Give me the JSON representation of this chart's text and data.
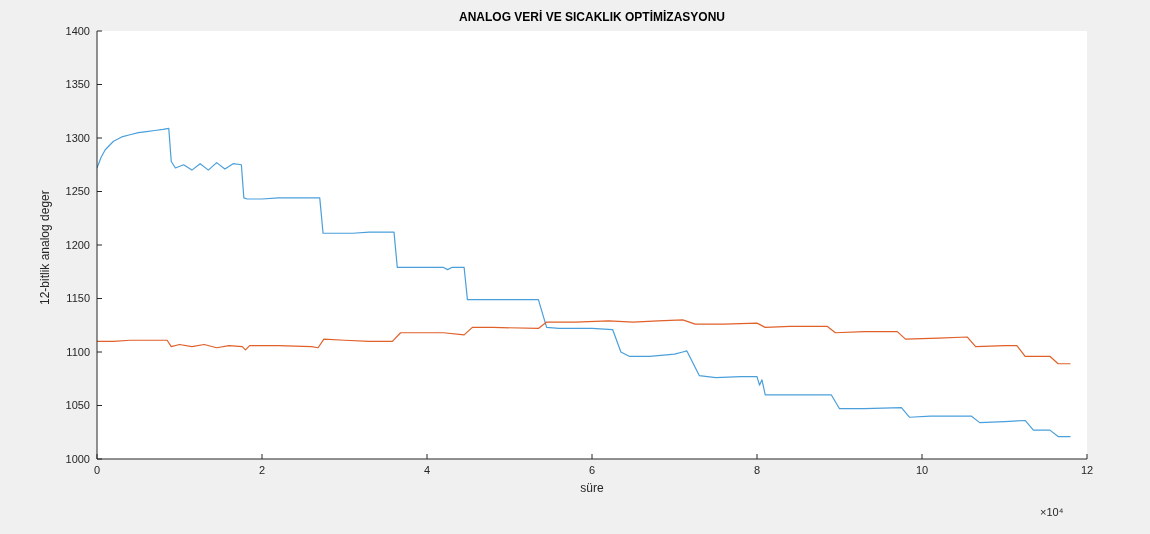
{
  "chart_data": {
    "type": "line",
    "title": "ANALOG VERİ VE SICAKLIK OPTİMİZASYONU",
    "xlabel": "süre",
    "ylabel": "12-bitlik analog deger",
    "annotations": [
      "×10⁴"
    ],
    "grid": false,
    "marker": "none",
    "line_style": "solid",
    "xlim": [
      0,
      12
    ],
    "ylim": [
      1000,
      1400
    ],
    "xticks": [
      0,
      2,
      4,
      6,
      8,
      10,
      12
    ],
    "yticks": [
      1000,
      1050,
      1100,
      1150,
      1200,
      1250,
      1300,
      1350,
      1400
    ],
    "series": [
      {
        "color": "#4a9fdb",
        "x": [
          0,
          0.05,
          0.1,
          0.2,
          0.3,
          0.4,
          0.5,
          0.6,
          0.7,
          0.8,
          0.87,
          0.9,
          0.95,
          1.05,
          1.15,
          1.25,
          1.35,
          1.45,
          1.55,
          1.65,
          1.75,
          1.78,
          1.82,
          2.0,
          2.2,
          2.4,
          2.6,
          2.7,
          2.74,
          2.9,
          3.1,
          3.3,
          3.5,
          3.6,
          3.64,
          3.8,
          4.0,
          4.2,
          4.25,
          4.3,
          4.45,
          4.49,
          4.7,
          5.0,
          5.35,
          5.45,
          5.6,
          6.0,
          6.25,
          6.35,
          6.45,
          6.7,
          7.0,
          7.1,
          7.15,
          7.3,
          7.5,
          7.8,
          8.0,
          8.03,
          8.06,
          8.1,
          8.3,
          8.6,
          8.9,
          9.0,
          9.3,
          9.75,
          9.85,
          10.1,
          10.4,
          10.6,
          10.7,
          11.0,
          11.25,
          11.35,
          11.55,
          11.65,
          11.8
        ],
        "values": [
          1272,
          1282,
          1289,
          1297,
          1301,
          1303,
          1305,
          1306,
          1307,
          1308,
          1309,
          1278,
          1272,
          1275,
          1270,
          1276,
          1270,
          1277,
          1271,
          1276,
          1275,
          1244,
          1243,
          1243,
          1244,
          1244,
          1244,
          1244,
          1211,
          1211,
          1211,
          1212,
          1212,
          1212,
          1179,
          1179,
          1179,
          1179,
          1177,
          1179,
          1179,
          1149,
          1149,
          1149,
          1149,
          1123,
          1122,
          1122,
          1121,
          1100,
          1096,
          1096,
          1098,
          1100,
          1101,
          1078,
          1076,
          1077,
          1077,
          1069,
          1074,
          1060,
          1060,
          1060,
          1060,
          1047,
          1047,
          1048,
          1039,
          1040,
          1040,
          1040,
          1034,
          1035,
          1036,
          1027,
          1027,
          1021,
          1021
        ]
      },
      {
        "color": "#e0602a",
        "x": [
          0,
          0.2,
          0.4,
          0.6,
          0.85,
          0.9,
          1.0,
          1.15,
          1.3,
          1.45,
          1.6,
          1.76,
          1.8,
          1.85,
          2.2,
          2.6,
          2.68,
          2.75,
          3.0,
          3.3,
          3.58,
          3.68,
          4.0,
          4.2,
          4.45,
          4.55,
          4.8,
          5.35,
          5.45,
          5.8,
          6.2,
          6.5,
          6.8,
          7.1,
          7.25,
          7.6,
          8.0,
          8.1,
          8.4,
          8.85,
          8.95,
          9.3,
          9.7,
          9.8,
          10.2,
          10.55,
          10.65,
          11.0,
          11.15,
          11.25,
          11.55,
          11.65,
          11.8
        ],
        "values": [
          1110,
          1110,
          1111,
          1111,
          1111,
          1105,
          1107,
          1105,
          1107,
          1104,
          1106,
          1105,
          1102,
          1106,
          1106,
          1105,
          1104,
          1112,
          1111,
          1110,
          1110,
          1118,
          1118,
          1118,
          1116,
          1123,
          1123,
          1122,
          1128,
          1128,
          1129,
          1128,
          1129,
          1130,
          1126,
          1126,
          1127,
          1123,
          1124,
          1124,
          1118,
          1119,
          1119,
          1112,
          1113,
          1114,
          1105,
          1106,
          1106,
          1096,
          1096,
          1089,
          1089
        ]
      }
    ]
  }
}
